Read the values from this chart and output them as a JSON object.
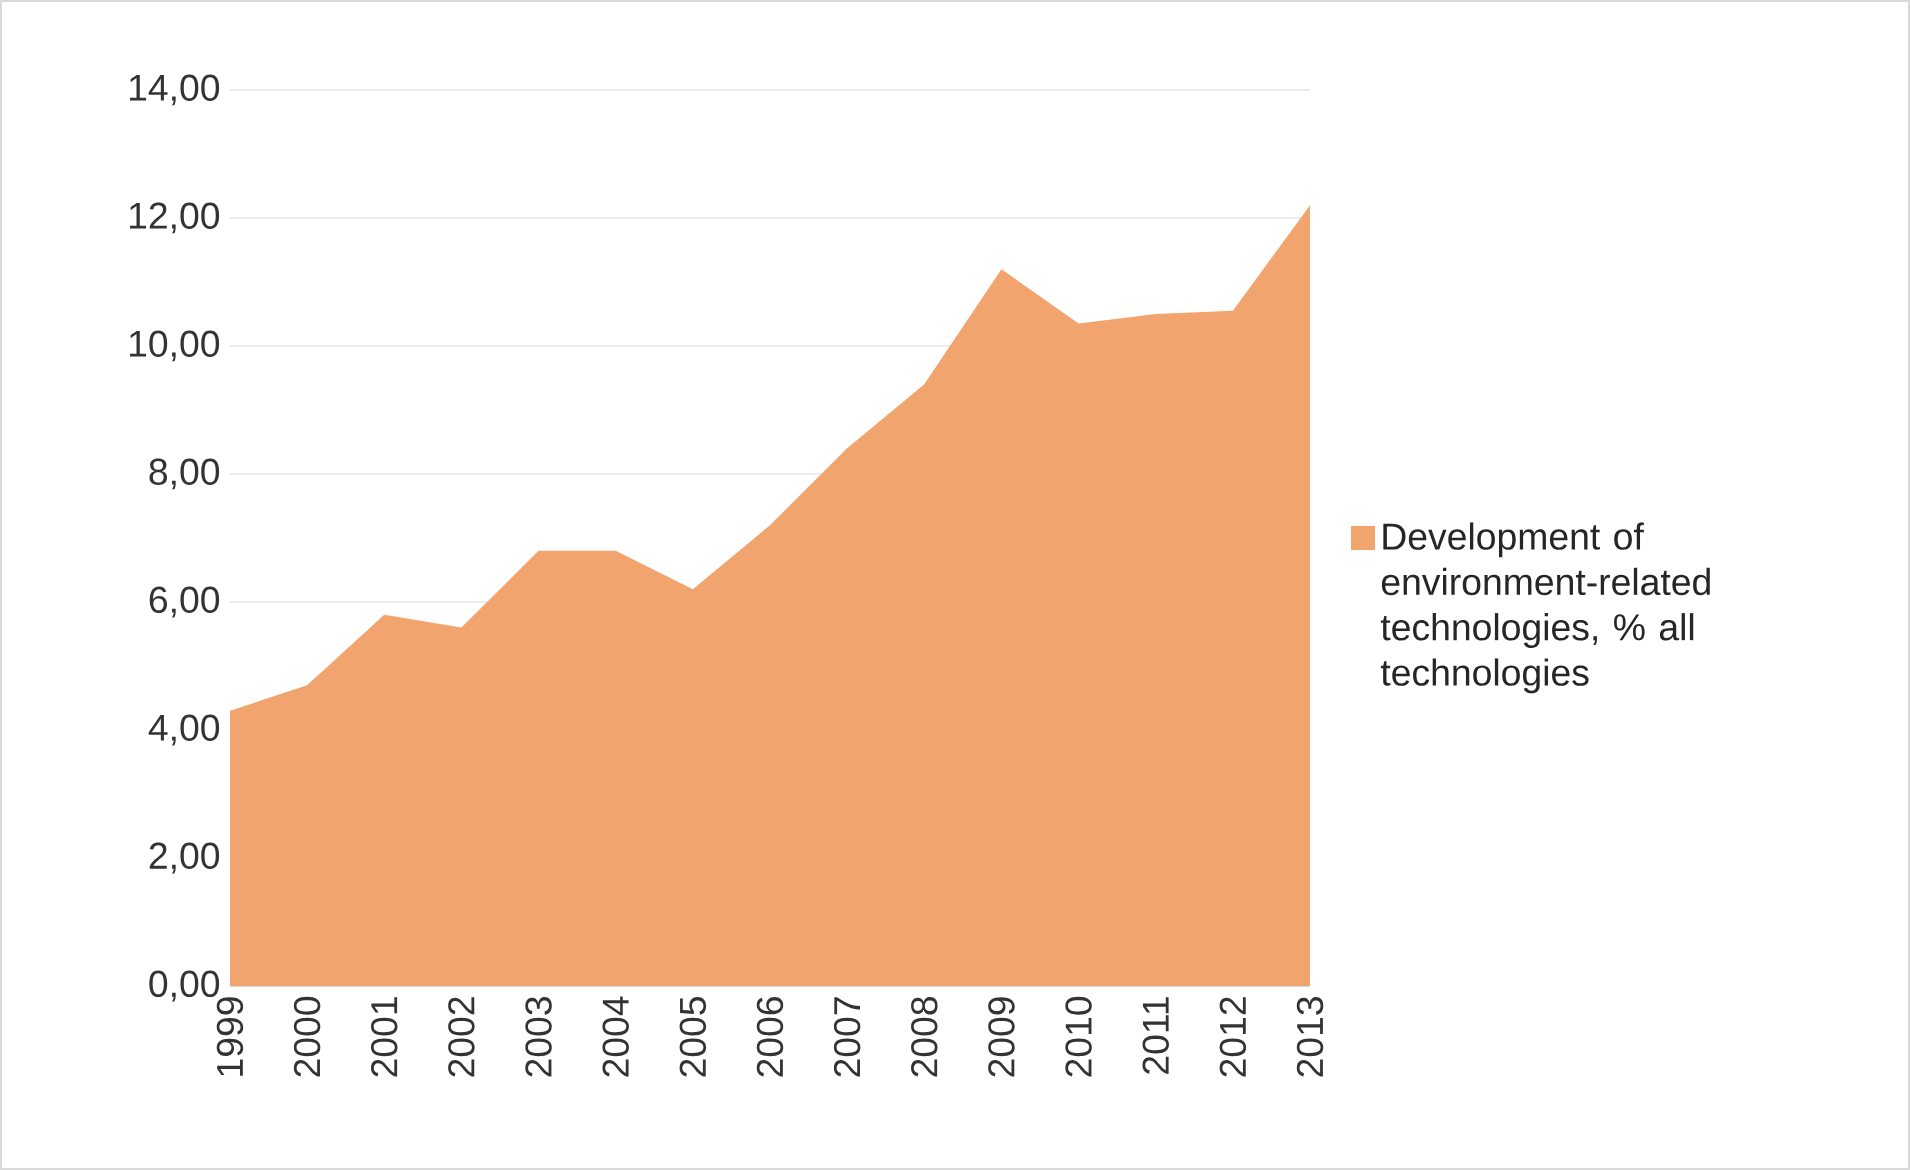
{
  "chart_data": {
    "type": "area",
    "categories": [
      "1999",
      "2000",
      "2001",
      "2002",
      "2003",
      "2004",
      "2005",
      "2006",
      "2007",
      "2008",
      "2009",
      "2010",
      "2011",
      "2012",
      "2013"
    ],
    "series": [
      {
        "name": "Development of environment-related technologies, % all technologies",
        "color": "#f2a46e",
        "values": [
          4.3,
          4.7,
          5.8,
          5.6,
          6.8,
          6.8,
          6.2,
          7.2,
          8.4,
          9.4,
          11.2,
          10.35,
          10.5,
          10.55,
          12.2
        ]
      }
    ],
    "ylim": [
      0,
      14
    ],
    "yticks": [
      {
        "value": 0,
        "label": "0,00"
      },
      {
        "value": 2,
        "label": "2,00"
      },
      {
        "value": 4,
        "label": "4,00"
      },
      {
        "value": 6,
        "label": "6,00"
      },
      {
        "value": 8,
        "label": "8,00"
      },
      {
        "value": 10,
        "label": "10,00"
      },
      {
        "value": 12,
        "label": "12,00"
      },
      {
        "value": 14,
        "label": "14,00"
      }
    ],
    "grid": "y",
    "legend": "right"
  }
}
